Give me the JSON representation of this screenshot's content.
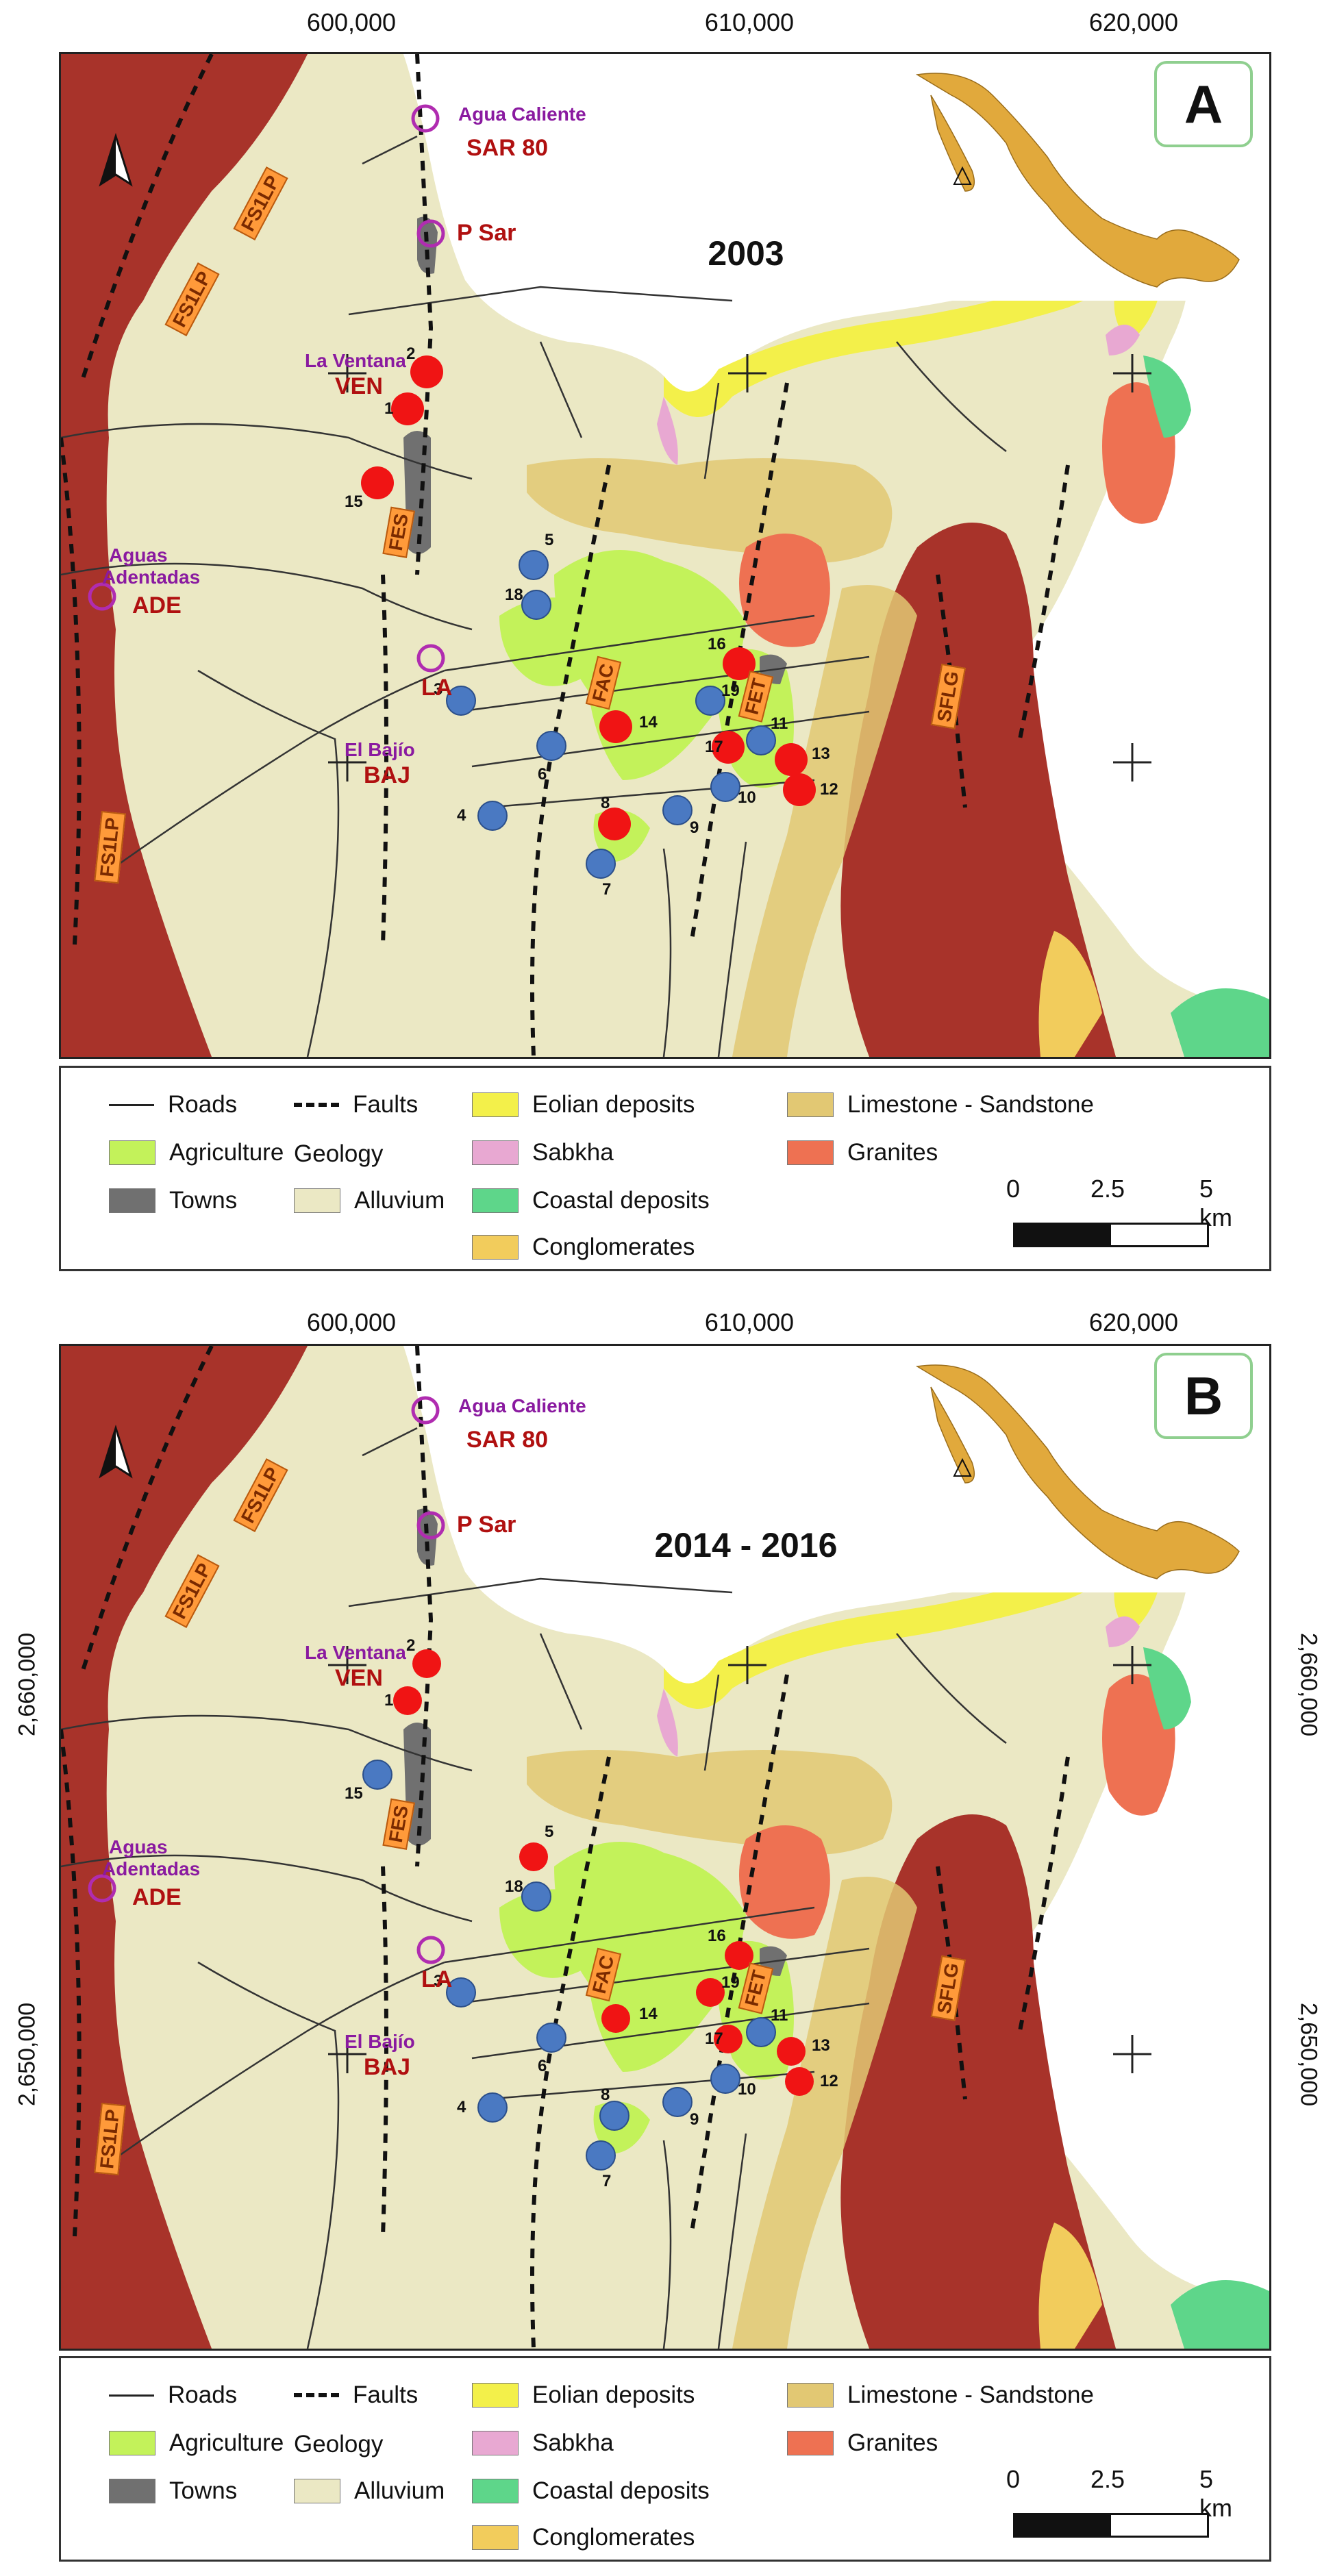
{
  "x_axis_labels": [
    "600,000",
    "610,000",
    "620,000"
  ],
  "y_axis_labels": [
    "2,660,000",
    "2,650,000"
  ],
  "panels": [
    {
      "letter": "A",
      "period": "2003"
    },
    {
      "letter": "B",
      "period": "2014 - 2016"
    }
  ],
  "sites": {
    "agua_caliente": "Agua Caliente",
    "sar80": "SAR 80",
    "psar": "P Sar",
    "la_ventana": "La Ventana",
    "ven": "VEN",
    "aguas_adentro_1": "Aguas",
    "aguas_adentro_2": "Adentadas",
    "ade": "ADE",
    "la": "LA",
    "el_bajio": "El Bajío",
    "baj": "BAJ"
  },
  "fault_labels": [
    "FS1LP",
    "FS1LP",
    "FES",
    "FS1LP",
    "FAC",
    "FET",
    "SFLG"
  ],
  "wells": [
    {
      "n": "1",
      "a": "red",
      "b": "red"
    },
    {
      "n": "2",
      "a": "red",
      "b": "red"
    },
    {
      "n": "3",
      "a": "blue",
      "b": "blue"
    },
    {
      "n": "4",
      "a": "blue",
      "b": "blue"
    },
    {
      "n": "5",
      "a": "blue",
      "b": "red"
    },
    {
      "n": "6",
      "a": "blue",
      "b": "blue"
    },
    {
      "n": "7",
      "a": "blue",
      "b": "blue"
    },
    {
      "n": "8",
      "a": "red",
      "b": "blue"
    },
    {
      "n": "9",
      "a": "blue",
      "b": "blue"
    },
    {
      "n": "10",
      "a": "blue",
      "b": "blue"
    },
    {
      "n": "11",
      "a": "blue",
      "b": "blue"
    },
    {
      "n": "12",
      "a": "red",
      "b": "red"
    },
    {
      "n": "13",
      "a": "red",
      "b": "red"
    },
    {
      "n": "14",
      "a": "red",
      "b": "red"
    },
    {
      "n": "15",
      "a": "red",
      "b": "blue"
    },
    {
      "n": "16",
      "a": "red",
      "b": "red"
    },
    {
      "n": "17",
      "a": "red",
      "b": "red"
    },
    {
      "n": "18",
      "a": "blue",
      "b": "blue"
    },
    {
      "n": "19",
      "a": "blue",
      "b": "red"
    }
  ],
  "legend": {
    "roads": "Roads",
    "faults": "Faults",
    "eolian": "Eolian deposits",
    "limestone": "Limestone - Sandstone",
    "agriculture": "Agriculture",
    "geology": "Geology",
    "sabkha": "Sabkha",
    "granites": "Granites",
    "towns": "Towns",
    "alluvium": "Alluvium",
    "coastal": "Coastal deposits",
    "conglomerates": "Conglomerates",
    "scale_0": "0",
    "scale_mid": "2.5",
    "scale_end": "5 km"
  },
  "colors": {
    "alluvium": "#ebe8c4",
    "sea": "#ffffff",
    "volcanic": "#a8332a",
    "agriculture": "#c3f25a",
    "towns": "#707070",
    "eolian": "#f3f04a",
    "sabkha": "#e8a8d2",
    "coastal": "#5ed68a",
    "conglomerates": "#f2cc5c",
    "limestone": "#e2c873",
    "granites": "#ee7152",
    "well_red": "#f01414",
    "well_blue": "#4a79c2",
    "site_circle": "#b02cb0"
  }
}
